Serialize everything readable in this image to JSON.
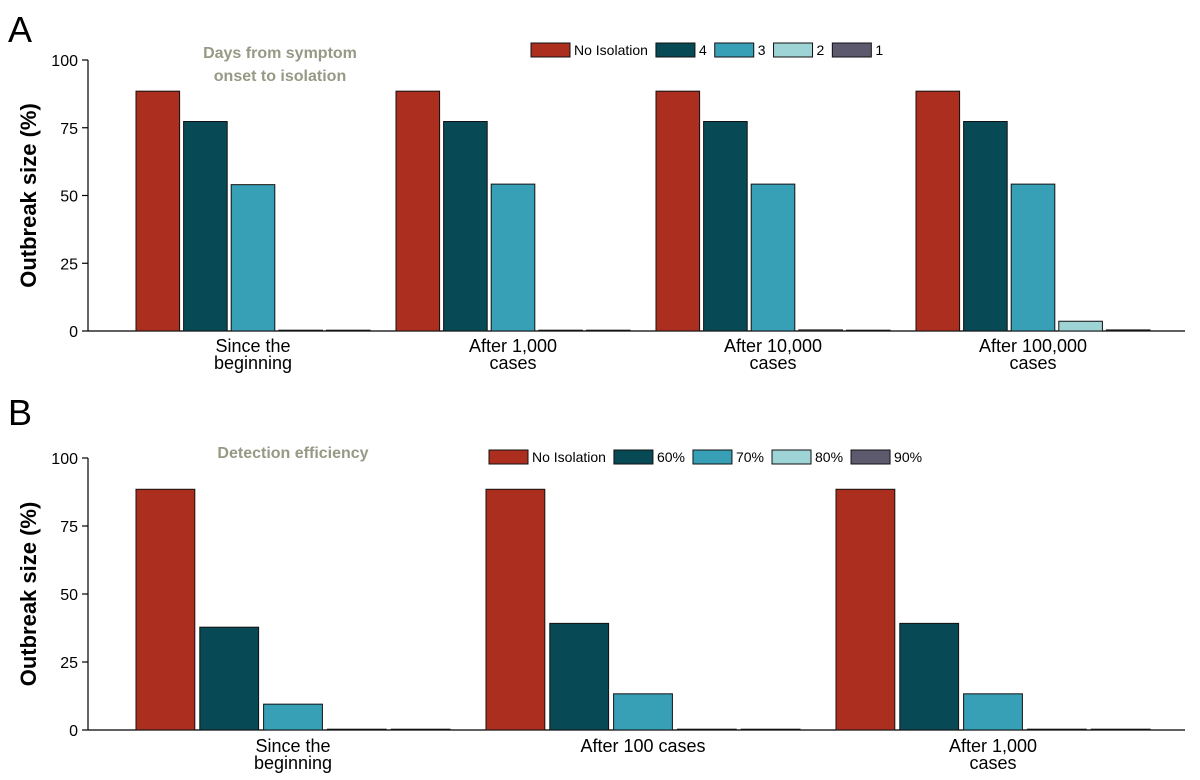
{
  "figure": {
    "colors": {
      "no_isolation": "#AC2E1E",
      "series_1": "#084956",
      "series_2": "#38A0B6",
      "series_3": "#9ED4D6",
      "series_4": "#5E5A6E",
      "annotation": "#979985",
      "axis": "#000000"
    }
  },
  "chart_data": [
    {
      "panel_label": "A",
      "type": "bar",
      "ylabel": "Outbreak size (%)",
      "ylim": [
        0,
        100
      ],
      "yticks": [
        0,
        25,
        50,
        75,
        100
      ],
      "legend_position": "top-right",
      "annotation": [
        "Days from symptom",
        "onset to isolation"
      ],
      "categories": [
        [
          "Since the",
          "beginning"
        ],
        [
          "After 1,000",
          "cases"
        ],
        [
          "After 10,000",
          "cases"
        ],
        [
          "After 100,000",
          "cases"
        ]
      ],
      "series": [
        {
          "name": "No Isolation",
          "color": "#AC2E1E",
          "values": [
            88.5,
            88.5,
            88.5,
            88.5
          ]
        },
        {
          "name": "4",
          "color": "#084956",
          "values": [
            77.3,
            77.3,
            77.3,
            77.3
          ]
        },
        {
          "name": "3",
          "color": "#38A0B6",
          "values": [
            54.0,
            54.2,
            54.2,
            54.2
          ]
        },
        {
          "name": "2",
          "color": "#9ED4D6",
          "values": [
            0.1,
            0.2,
            0.4,
            3.6
          ]
        },
        {
          "name": "1",
          "color": "#5E5A6E",
          "values": [
            0.1,
            0.1,
            0.2,
            0.4
          ]
        }
      ]
    },
    {
      "panel_label": "B",
      "type": "bar",
      "ylabel": "Outbreak size (%)",
      "ylim": [
        0,
        100
      ],
      "yticks": [
        0,
        25,
        50,
        75,
        100
      ],
      "legend_position": "top-right",
      "annotation": [
        "Detection efficiency"
      ],
      "categories": [
        [
          "Since the",
          "beginning"
        ],
        [
          "After 100 cases"
        ],
        [
          "After 1,000",
          "cases"
        ]
      ],
      "series": [
        {
          "name": "No Isolation",
          "color": "#AC2E1E",
          "values": [
            88.5,
            88.5,
            88.5
          ]
        },
        {
          "name": "60%",
          "color": "#084956",
          "values": [
            37.8,
            39.2,
            39.2
          ]
        },
        {
          "name": "70%",
          "color": "#38A0B6",
          "values": [
            9.5,
            13.3,
            13.3
          ]
        },
        {
          "name": "80%",
          "color": "#9ED4D6",
          "values": [
            0.1,
            0.3,
            0.3
          ]
        },
        {
          "name": "90%",
          "color": "#5E5A6E",
          "values": [
            0.1,
            0.2,
            0.3
          ]
        }
      ]
    }
  ]
}
